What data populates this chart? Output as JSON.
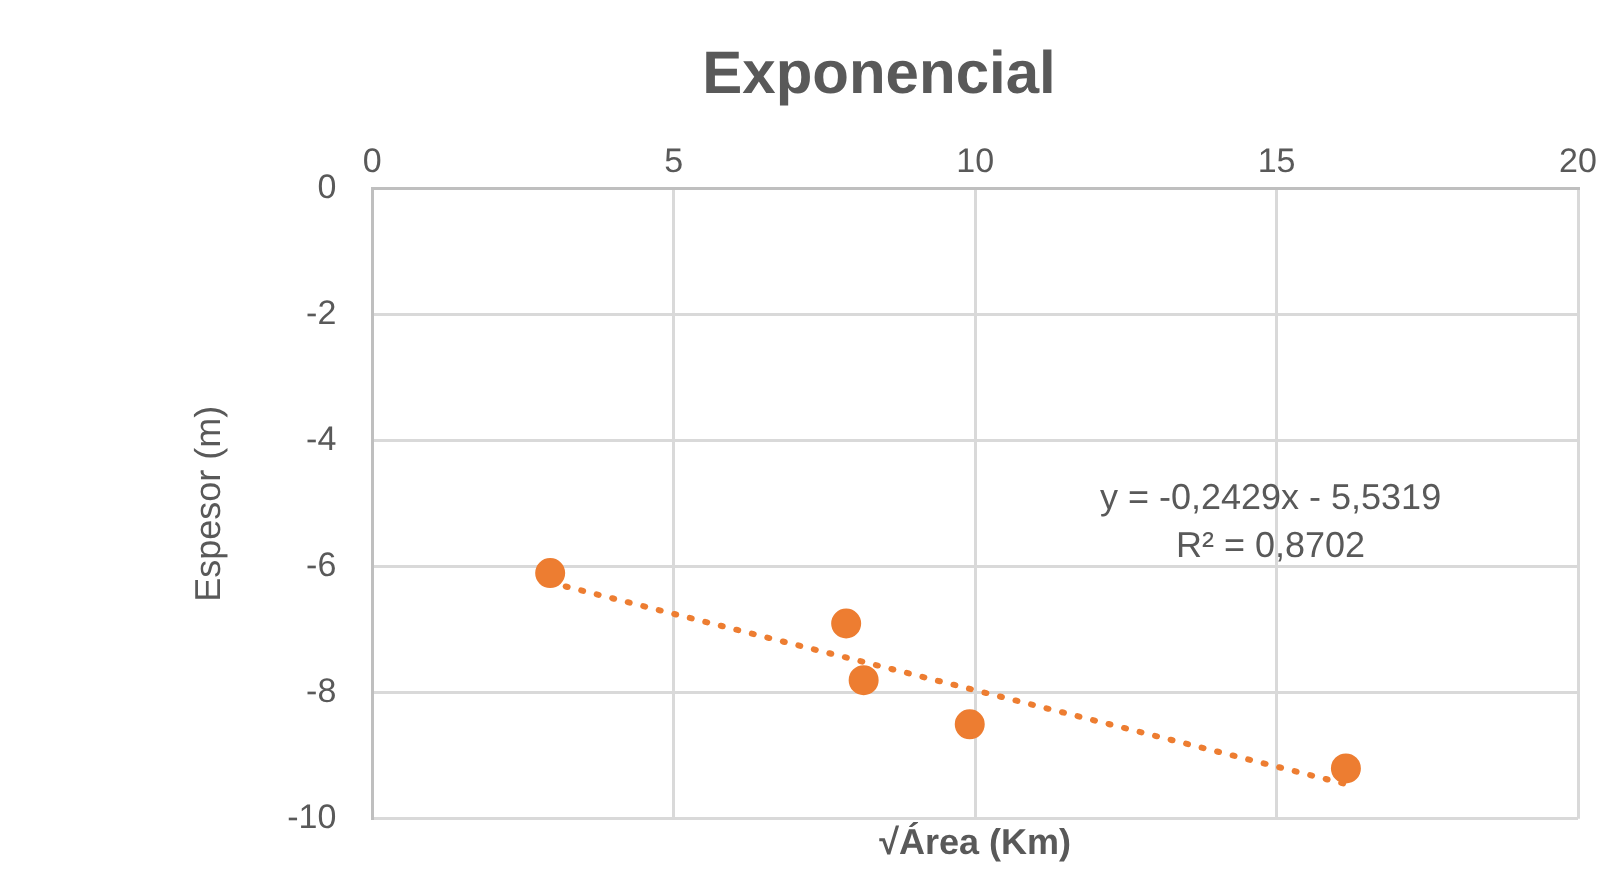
{
  "chart_data": {
    "type": "scatter",
    "title": "Exponencial",
    "xlabel": "√Área (Km)",
    "ylabel": "Espesor (m)",
    "xlim": [
      0,
      20
    ],
    "xticks": [
      0,
      5,
      10,
      15,
      20
    ],
    "ylim": [
      -10,
      0
    ],
    "yticks": [
      -10,
      -8,
      -6,
      -4,
      -2,
      0
    ],
    "grid": true,
    "legend": false,
    "series": [
      {
        "type": "scatter",
        "color": "#ed7d31",
        "marker": "circle",
        "x": [
          2.95,
          7.86,
          8.15,
          9.91,
          16.15
        ],
        "values": [
          -6.1,
          -6.9,
          -7.8,
          -8.5,
          -9.2
        ]
      },
      {
        "type": "line",
        "color": "#ed7d31",
        "marker": "none",
        "line_style": "dotted",
        "x": [
          2.95,
          16.15
        ],
        "values": [
          -6.25,
          -9.45
        ]
      }
    ],
    "annotations": [
      "y = -0,2429x - 5,5319",
      "R² = 0,8702"
    ]
  }
}
